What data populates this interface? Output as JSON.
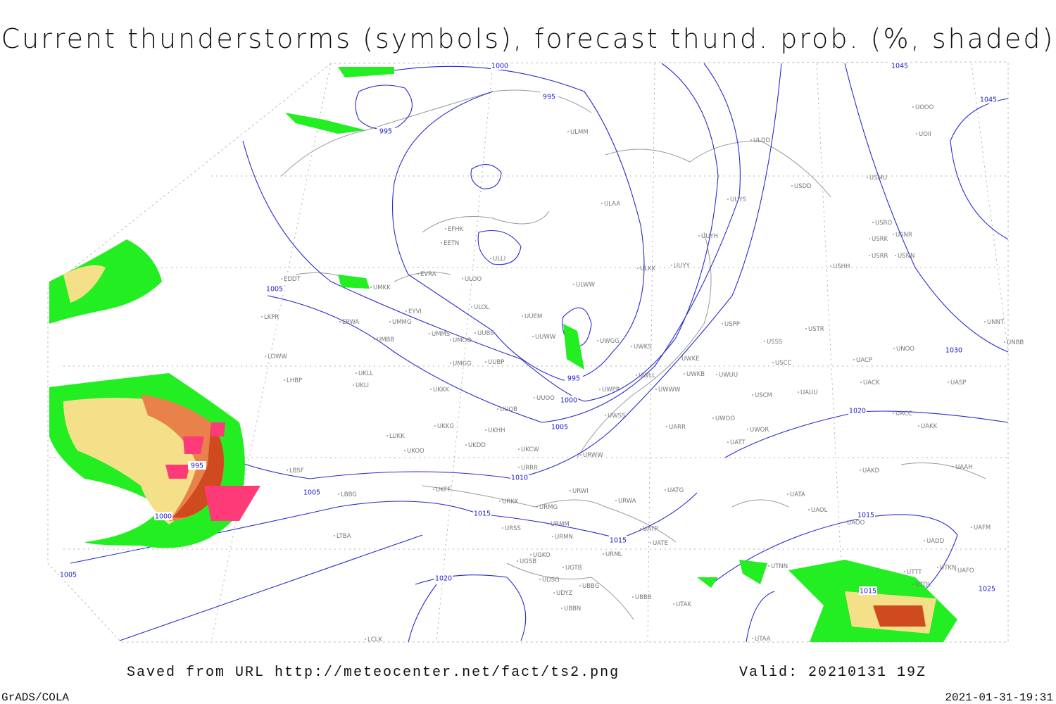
{
  "header": {
    "title": "Current thunderstorms (symbols), forecast thund. prob. (%, shaded)"
  },
  "isobars": [
    "1000",
    "995",
    "995",
    "1045",
    "1045",
    "1005",
    "995",
    "1000",
    "1005",
    "1010",
    "1015",
    "1015",
    "1020",
    "1020",
    "1015",
    "1015",
    "1030",
    "1025",
    "995",
    "1000",
    "1005",
    "1005"
  ],
  "stations": [
    "ULMM",
    "ULDD",
    "USDD",
    "USMU",
    "UOOO",
    "UOII",
    "ULAA",
    "UUYS",
    "USRO",
    "USRK",
    "USNR",
    "USRR",
    "USNN",
    "UUYH",
    "EFHK",
    "EETN",
    "ULLI",
    "ULKK",
    "UUYY",
    "USHH",
    "EVRA",
    "ULOO",
    "UMKK",
    "ULWW",
    "EDDT",
    "EYVI",
    "ULOL",
    "UUEM",
    "UUWW",
    "UWGG",
    "UWKS",
    "USPP",
    "USTR",
    "USSS",
    "UNOO",
    "UNNT",
    "UNBB",
    "LKPR",
    "EPWA",
    "UMMG",
    "UMMS",
    "UMOO",
    "UUBS",
    "UMBB",
    "LOWW",
    "UUBP",
    "UMGG",
    "UWKE",
    "UWLL",
    "UWKB",
    "UWUU",
    "USCC",
    "UACP",
    "UKLL",
    "UKLI",
    "LHBP",
    "UKKK",
    "UUOO",
    "UWPP",
    "UWWW",
    "USCM",
    "UAUU",
    "UACK",
    "UASP",
    "UUOB",
    "UWSS",
    "UARR",
    "UWOO",
    "UWOR",
    "UACC",
    "UAKK",
    "UKKG",
    "UKDD",
    "UKHH",
    "UKOO",
    "UKCW",
    "URRR",
    "URWW",
    "UATT",
    "UAKD",
    "UAAH",
    "LBSF",
    "LBBG",
    "UKFF",
    "URKK",
    "URMG",
    "URWI",
    "UATG",
    "URWA",
    "UATA",
    "UAOL",
    "UAOO",
    "UAFM",
    "URSS",
    "URMM",
    "URMN",
    "UATP",
    "UATE",
    "LTBA",
    "UGKO",
    "UGSB",
    "UGTB",
    "URML",
    "UADD",
    "UTTT",
    "UTKN",
    "UAFO",
    "UTDL",
    "UDSG",
    "UBBG",
    "UDYZ",
    "UBBB",
    "UTAK",
    "UTAA",
    "UBBN",
    "LCLK",
    "UTNN",
    "LUKK"
  ],
  "footer": {
    "source": "Saved from URL http://meteocenter.net/fact/ts2.png",
    "valid": "Valid: 20210131 19Z",
    "software": "GrADS/COLA",
    "timestamp": "2021-01-31-19:31"
  }
}
